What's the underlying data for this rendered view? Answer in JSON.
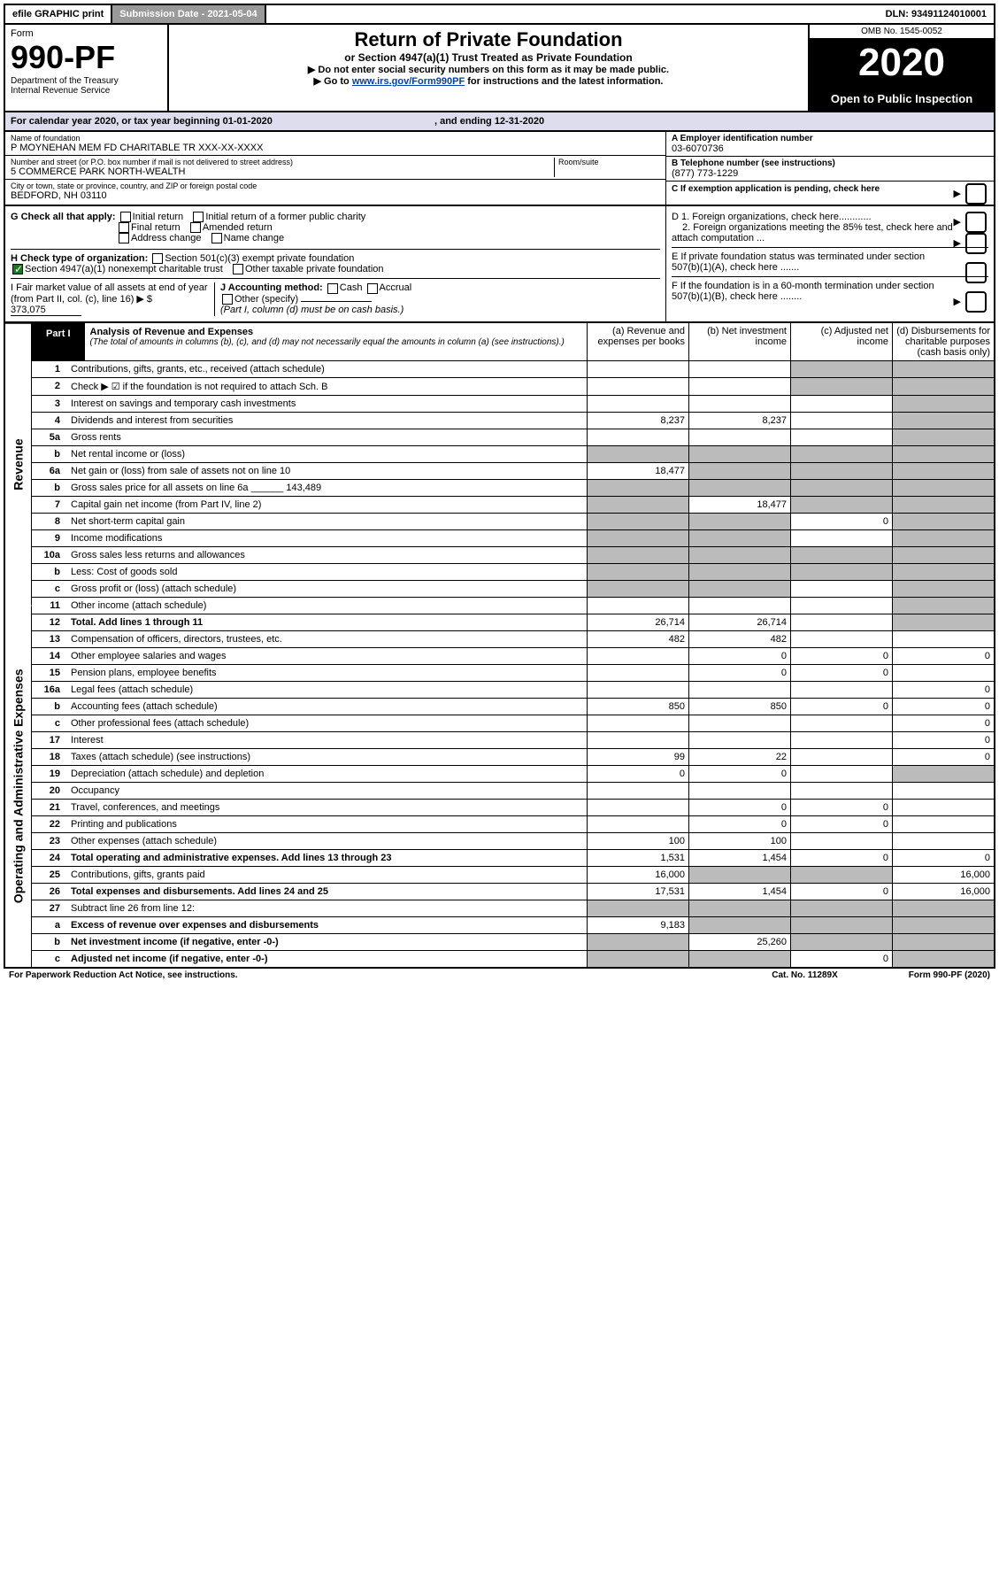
{
  "topbar": {
    "efile": "efile GRAPHIC print",
    "subdate": "Submission Date - 2021-05-04",
    "dln": "DLN: 93491124010001"
  },
  "header": {
    "form_label": "Form",
    "form_no": "990-PF",
    "dept": "Department of the Treasury\nInternal Revenue Service",
    "title": "Return of Private Foundation",
    "subtitle": "or Section 4947(a)(1) Trust Treated as Private Foundation",
    "note1": "▶ Do not enter social security numbers on this form as it may be made public.",
    "note2_pre": "▶ Go to ",
    "note2_link": "www.irs.gov/Form990PF",
    "note2_post": " for instructions and the latest information.",
    "omb": "OMB No. 1545-0052",
    "year": "2020",
    "open": "Open to Public Inspection"
  },
  "calendar": {
    "text": "For calendar year 2020, or tax year beginning 01-01-2020",
    "ending_label": ", and ending 12-31-2020"
  },
  "entity": {
    "name_label": "Name of foundation",
    "name": "P MOYNEHAN MEM FD CHARITABLE TR XXX-XX-XXXX",
    "addr_label": "Number and street (or P.O. box number if mail is not delivered to street address)",
    "addr": "5 COMMERCE PARK NORTH-WEALTH",
    "room_label": "Room/suite",
    "city_label": "City or town, state or province, country, and ZIP or foreign postal code",
    "city": "BEDFORD, NH  03110",
    "ein_label": "A Employer identification number",
    "ein": "03-6070736",
    "phone_label": "B Telephone number (see instructions)",
    "phone": "(877) 773-1229",
    "c_label": "C If exemption application is pending, check here",
    "d1": "D 1. Foreign organizations, check here............",
    "d2": "2. Foreign organizations meeting the 85% test, check here and attach computation ...",
    "e": "E  If private foundation status was terminated under section 507(b)(1)(A), check here .......",
    "f": "F  If the foundation is in a 60-month termination under section 507(b)(1)(B), check here ........"
  },
  "chk": {
    "g_label": "G Check all that apply:",
    "initial": "Initial return",
    "finalr": "Final return",
    "addrchg": "Address change",
    "initial_former": "Initial return of a former public charity",
    "amended": "Amended return",
    "namechg": "Name change",
    "h_label": "H Check type of organization:",
    "h_501c3": "Section 501(c)(3) exempt private foundation",
    "h_4947": "Section 4947(a)(1) nonexempt charitable trust",
    "h_other": "Other taxable private foundation",
    "i_label": "I Fair market value of all assets at end of year (from Part II, col. (c), line 16) ▶ $",
    "i_value": "373,075",
    "j_label": "J Accounting method:",
    "j_cash": "Cash",
    "j_accrual": "Accrual",
    "j_other": "Other (specify)",
    "j_note": "(Part I, column (d) must be on cash basis.)"
  },
  "part1": {
    "tag": "Part I",
    "title": "Analysis of Revenue and Expenses",
    "fine": "(The total of amounts in columns (b), (c), and (d) may not necessarily equal the amounts in column (a) (see instructions).)",
    "colA": "(a)  Revenue and expenses per books",
    "colB": "(b)  Net investment income",
    "colC": "(c)  Adjusted net income",
    "colD": "(d)  Disbursements for charitable purposes (cash basis only)"
  },
  "sideRev": "Revenue",
  "sideExp": "Operating and Administrative Expenses",
  "lines": {
    "1": {
      "n": "1",
      "d": "Contributions, gifts, grants, etc., received (attach schedule)",
      "a": "",
      "b": "",
      "c": "s",
      "dd": "s"
    },
    "2": {
      "n": "2",
      "d": "Check ▶ ☑ if the foundation is not required to attach Sch. B",
      "a": "",
      "b": "",
      "c": "s",
      "dd": "s"
    },
    "3": {
      "n": "3",
      "d": "Interest on savings and temporary cash investments",
      "a": "",
      "b": "",
      "c": "",
      "dd": "s"
    },
    "4": {
      "n": "4",
      "d": "Dividends and interest from securities",
      "a": "8,237",
      "b": "8,237",
      "c": "",
      "dd": "s"
    },
    "5a": {
      "n": "5a",
      "d": "Gross rents",
      "a": "",
      "b": "",
      "c": "",
      "dd": "s"
    },
    "5b": {
      "n": "b",
      "d": "Net rental income or (loss)",
      "a": "s",
      "b": "s",
      "c": "s",
      "dd": "s"
    },
    "6a": {
      "n": "6a",
      "d": "Net gain or (loss) from sale of assets not on line 10",
      "a": "18,477",
      "b": "s",
      "c": "s",
      "dd": "s"
    },
    "6b": {
      "n": "b",
      "d": "Gross sales price for all assets on line 6a ______ 143,489",
      "a": "s",
      "b": "s",
      "c": "s",
      "dd": "s"
    },
    "7": {
      "n": "7",
      "d": "Capital gain net income (from Part IV, line 2)",
      "a": "s",
      "b": "18,477",
      "c": "s",
      "dd": "s"
    },
    "8": {
      "n": "8",
      "d": "Net short-term capital gain",
      "a": "s",
      "b": "s",
      "c": "0",
      "dd": "s"
    },
    "9": {
      "n": "9",
      "d": "Income modifications",
      "a": "s",
      "b": "s",
      "c": "",
      "dd": "s"
    },
    "10a": {
      "n": "10a",
      "d": "Gross sales less returns and allowances",
      "a": "s",
      "b": "s",
      "c": "s",
      "dd": "s"
    },
    "10b": {
      "n": "b",
      "d": "Less: Cost of goods sold",
      "a": "s",
      "b": "s",
      "c": "s",
      "dd": "s"
    },
    "10c": {
      "n": "c",
      "d": "Gross profit or (loss) (attach schedule)",
      "a": "s",
      "b": "s",
      "c": "",
      "dd": "s"
    },
    "11": {
      "n": "11",
      "d": "Other income (attach schedule)",
      "a": "",
      "b": "",
      "c": "",
      "dd": "s"
    },
    "12": {
      "n": "12",
      "d": "Total. Add lines 1 through 11",
      "a": "26,714",
      "b": "26,714",
      "c": "",
      "dd": "s"
    },
    "13": {
      "n": "13",
      "d": "Compensation of officers, directors, trustees, etc.",
      "a": "482",
      "b": "482",
      "c": "",
      "dd": ""
    },
    "14": {
      "n": "14",
      "d": "Other employee salaries and wages",
      "a": "",
      "b": "0",
      "c": "0",
      "dd": "0"
    },
    "15": {
      "n": "15",
      "d": "Pension plans, employee benefits",
      "a": "",
      "b": "0",
      "c": "0",
      "dd": ""
    },
    "16a": {
      "n": "16a",
      "d": "Legal fees (attach schedule)",
      "a": "",
      "b": "",
      "c": "",
      "dd": "0"
    },
    "16b": {
      "n": "b",
      "d": "Accounting fees (attach schedule)",
      "a": "850",
      "b": "850",
      "c": "0",
      "dd": "0"
    },
    "16c": {
      "n": "c",
      "d": "Other professional fees (attach schedule)",
      "a": "",
      "b": "",
      "c": "",
      "dd": "0"
    },
    "17": {
      "n": "17",
      "d": "Interest",
      "a": "",
      "b": "",
      "c": "",
      "dd": "0"
    },
    "18": {
      "n": "18",
      "d": "Taxes (attach schedule) (see instructions)",
      "a": "99",
      "b": "22",
      "c": "",
      "dd": "0"
    },
    "19": {
      "n": "19",
      "d": "Depreciation (attach schedule) and depletion",
      "a": "0",
      "b": "0",
      "c": "",
      "dd": "s"
    },
    "20": {
      "n": "20",
      "d": "Occupancy",
      "a": "",
      "b": "",
      "c": "",
      "dd": ""
    },
    "21": {
      "n": "21",
      "d": "Travel, conferences, and meetings",
      "a": "",
      "b": "0",
      "c": "0",
      "dd": ""
    },
    "22": {
      "n": "22",
      "d": "Printing and publications",
      "a": "",
      "b": "0",
      "c": "0",
      "dd": ""
    },
    "23": {
      "n": "23",
      "d": "Other expenses (attach schedule)",
      "a": "100",
      "b": "100",
      "c": "",
      "dd": ""
    },
    "24": {
      "n": "24",
      "d": "Total operating and administrative expenses. Add lines 13 through 23",
      "a": "1,531",
      "b": "1,454",
      "c": "0",
      "dd": "0"
    },
    "25": {
      "n": "25",
      "d": "Contributions, gifts, grants paid",
      "a": "16,000",
      "b": "s",
      "c": "s",
      "dd": "16,000"
    },
    "26": {
      "n": "26",
      "d": "Total expenses and disbursements. Add lines 24 and 25",
      "a": "17,531",
      "b": "1,454",
      "c": "0",
      "dd": "16,000"
    },
    "27": {
      "n": "27",
      "d": "Subtract line 26 from line 12:",
      "a": "s",
      "b": "s",
      "c": "s",
      "dd": "s"
    },
    "27a": {
      "n": "a",
      "d": "Excess of revenue over expenses and disbursements",
      "a": "9,183",
      "b": "s",
      "c": "s",
      "dd": "s"
    },
    "27b": {
      "n": "b",
      "d": "Net investment income (if negative, enter -0-)",
      "a": "s",
      "b": "25,260",
      "c": "s",
      "dd": "s"
    },
    "27c": {
      "n": "c",
      "d": "Adjusted net income (if negative, enter -0-)",
      "a": "s",
      "b": "s",
      "c": "0",
      "dd": "s"
    }
  },
  "footer": {
    "left": "For Paperwork Reduction Act Notice, see instructions.",
    "mid": "Cat. No. 11289X",
    "right": "Form 990-PF (2020)"
  },
  "revenue_lines": [
    "1",
    "2",
    "3",
    "4",
    "5a",
    "5b",
    "6a",
    "6b",
    "7",
    "8",
    "9",
    "10a",
    "10b",
    "10c",
    "11",
    "12"
  ],
  "expense_lines": [
    "13",
    "14",
    "15",
    "16a",
    "16b",
    "16c",
    "17",
    "18",
    "19",
    "20",
    "21",
    "22",
    "23",
    "24",
    "25",
    "26",
    "27",
    "27a",
    "27b",
    "27c"
  ]
}
